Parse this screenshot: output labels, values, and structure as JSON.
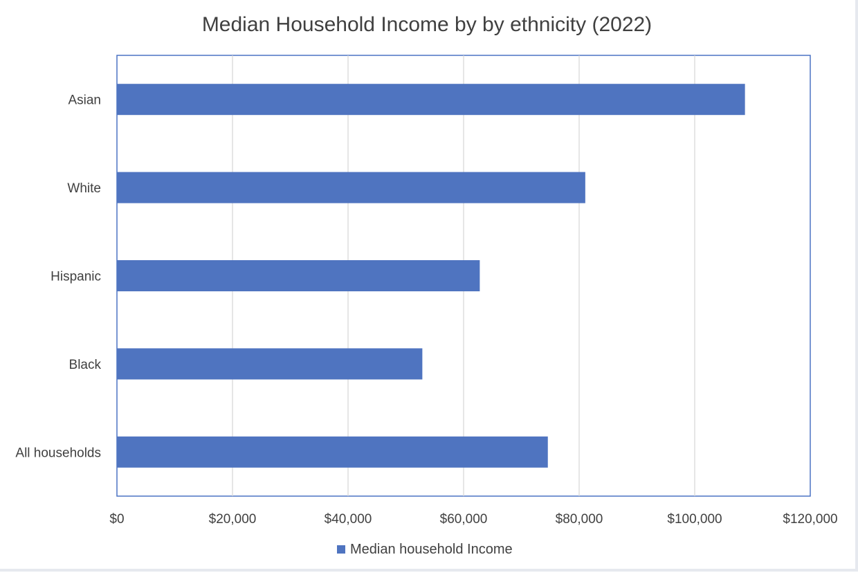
{
  "chart_data": {
    "type": "bar",
    "orientation": "horizontal",
    "title": "Median Household Income by by ethnicity (2022)",
    "xlabel": "",
    "ylabel": "",
    "categories": [
      "Asian",
      "White",
      "Hispanic",
      "Black",
      "All households"
    ],
    "series": [
      {
        "name": "Median household Income",
        "values": [
          108700,
          81060,
          62800,
          52860,
          74580
        ]
      }
    ],
    "xlim": [
      0,
      120000
    ],
    "xticks": [
      0,
      20000,
      40000,
      60000,
      80000,
      100000,
      120000
    ],
    "xtick_labels": [
      "$0",
      "$20,000",
      "$40,000",
      "$60,000",
      "$80,000",
      "$100,000",
      "$120,000"
    ],
    "grid": "vertical",
    "legend": "bottom",
    "colors": {
      "bar": "#4f74c0",
      "grid": "#d6d6d6",
      "border": "#4a72c4",
      "text": "#404040"
    }
  }
}
